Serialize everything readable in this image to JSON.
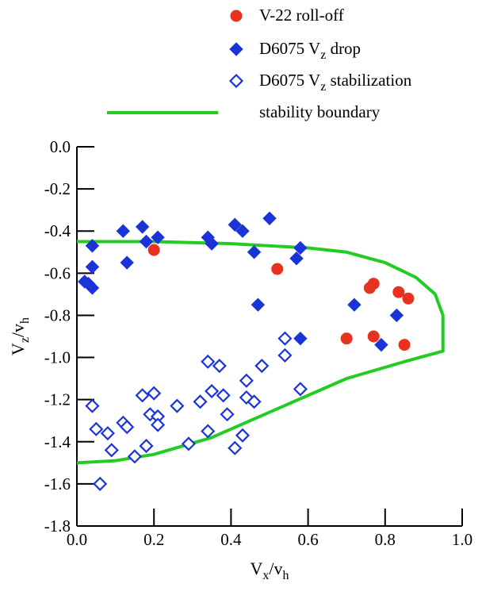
{
  "chart_data": {
    "type": "scatter",
    "xlim": [
      0.0,
      1.0
    ],
    "ylim": [
      -1.8,
      0.0
    ],
    "x_ticks": [
      "0.0",
      "0.2",
      "0.4",
      "0.6",
      "0.8",
      "1.0"
    ],
    "y_ticks": [
      "0.0",
      "-0.2",
      "-0.4",
      "-0.6",
      "-0.8",
      "-1.0",
      "-1.2",
      "-1.4",
      "-1.6",
      "-1.8"
    ],
    "xlabel": {
      "main": "V",
      "sub": "x",
      "mid": "/v",
      "sub2": "h"
    },
    "ylabel": {
      "main": "V",
      "sub": "z",
      "mid": "/v",
      "sub2": "h"
    },
    "grid": false,
    "legend_position": "top",
    "legend": [
      {
        "text": "V-22 roll-off",
        "sub": "",
        "tail": "",
        "marker": "circle"
      },
      {
        "text": "D6075 V",
        "sub": "z",
        "tail": " drop",
        "marker": "diamond-filled"
      },
      {
        "text": "D6075 V",
        "sub": "z",
        "tail": " stabilization",
        "marker": "diamond-open"
      },
      {
        "text": "stability boundary",
        "sub": "",
        "tail": "",
        "marker": "line"
      }
    ],
    "colors": {
      "roll_off": "#e8321e",
      "drop": "#1a34d8",
      "stabilization": "#1a34d8",
      "boundary": "#22cc22"
    },
    "series": [
      {
        "name": "V-22 roll-off",
        "points": [
          [
            0.2,
            -0.49
          ],
          [
            0.52,
            -0.58
          ],
          [
            0.76,
            -0.67
          ],
          [
            0.77,
            -0.65
          ],
          [
            0.835,
            -0.69
          ],
          [
            0.86,
            -0.72
          ],
          [
            0.7,
            -0.91
          ],
          [
            0.77,
            -0.9
          ],
          [
            0.85,
            -0.94
          ]
        ]
      },
      {
        "name": "D6075 Vz drop",
        "points": [
          [
            0.04,
            -0.47
          ],
          [
            0.04,
            -0.57
          ],
          [
            0.02,
            -0.64
          ],
          [
            0.03,
            -0.65
          ],
          [
            0.04,
            -0.67
          ],
          [
            0.12,
            -0.4
          ],
          [
            0.17,
            -0.38
          ],
          [
            0.13,
            -0.55
          ],
          [
            0.18,
            -0.45
          ],
          [
            0.21,
            -0.43
          ],
          [
            0.34,
            -0.43
          ],
          [
            0.35,
            -0.46
          ],
          [
            0.41,
            -0.37
          ],
          [
            0.43,
            -0.4
          ],
          [
            0.46,
            -0.5
          ],
          [
            0.5,
            -0.34
          ],
          [
            0.47,
            -0.75
          ],
          [
            0.57,
            -0.53
          ],
          [
            0.58,
            -0.48
          ],
          [
            0.58,
            -0.91
          ],
          [
            0.72,
            -0.75
          ],
          [
            0.79,
            -0.94
          ],
          [
            0.83,
            -0.8
          ]
        ]
      },
      {
        "name": "D6075 Vz stabilization",
        "points": [
          [
            0.04,
            -1.23
          ],
          [
            0.05,
            -1.34
          ],
          [
            0.06,
            -1.6
          ],
          [
            0.08,
            -1.36
          ],
          [
            0.09,
            -1.44
          ],
          [
            0.12,
            -1.31
          ],
          [
            0.13,
            -1.33
          ],
          [
            0.15,
            -1.47
          ],
          [
            0.17,
            -1.18
          ],
          [
            0.18,
            -1.42
          ],
          [
            0.19,
            -1.27
          ],
          [
            0.2,
            -1.17
          ],
          [
            0.21,
            -1.28
          ],
          [
            0.21,
            -1.32
          ],
          [
            0.26,
            -1.23
          ],
          [
            0.29,
            -1.41
          ],
          [
            0.32,
            -1.21
          ],
          [
            0.34,
            -1.02
          ],
          [
            0.35,
            -1.16
          ],
          [
            0.34,
            -1.35
          ],
          [
            0.37,
            -1.04
          ],
          [
            0.38,
            -1.18
          ],
          [
            0.39,
            -1.27
          ],
          [
            0.41,
            -1.43
          ],
          [
            0.44,
            -1.11
          ],
          [
            0.44,
            -1.19
          ],
          [
            0.43,
            -1.37
          ],
          [
            0.46,
            -1.21
          ],
          [
            0.48,
            -1.04
          ],
          [
            0.54,
            -0.99
          ],
          [
            0.54,
            -0.91
          ],
          [
            0.58,
            -1.15
          ]
        ]
      },
      {
        "name": "stability boundary",
        "points": [
          [
            0.0,
            -0.45
          ],
          [
            0.2,
            -0.45
          ],
          [
            0.4,
            -0.46
          ],
          [
            0.5,
            -0.47
          ],
          [
            0.6,
            -0.48
          ],
          [
            0.7,
            -0.5
          ],
          [
            0.8,
            -0.55
          ],
          [
            0.88,
            -0.62
          ],
          [
            0.93,
            -0.7
          ],
          [
            0.95,
            -0.8
          ],
          [
            0.95,
            -0.97
          ],
          [
            0.85,
            -1.02
          ],
          [
            0.7,
            -1.1
          ],
          [
            0.55,
            -1.22
          ],
          [
            0.45,
            -1.3
          ],
          [
            0.35,
            -1.38
          ],
          [
            0.2,
            -1.46
          ],
          [
            0.1,
            -1.49
          ],
          [
            0.0,
            -1.5
          ]
        ]
      }
    ]
  }
}
